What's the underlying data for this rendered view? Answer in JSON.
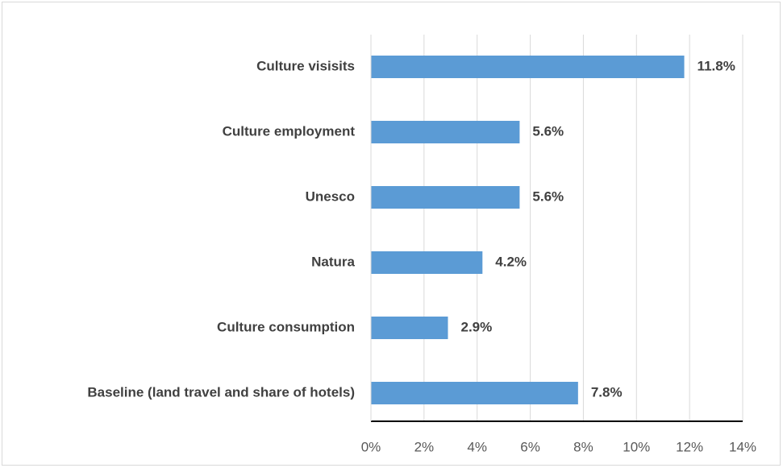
{
  "chart_data": {
    "type": "bar",
    "orientation": "horizontal",
    "categories": [
      "Culture visisits",
      "Culture employment",
      "Unesco",
      "Natura",
      "Culture consumption",
      "Baseline (land travel and share of hotels)"
    ],
    "values": [
      11.8,
      5.6,
      5.6,
      4.2,
      2.9,
      7.8
    ],
    "value_labels": [
      "11.8%",
      "5.6%",
      "5.6%",
      "4.2%",
      "2.9%",
      "7.8%"
    ],
    "xlim": [
      0,
      14
    ],
    "xticks": [
      0,
      2,
      4,
      6,
      8,
      10,
      12,
      14
    ],
    "xtick_labels": [
      "0%",
      "2%",
      "4%",
      "6%",
      "8%",
      "10%",
      "12%",
      "14%"
    ],
    "title": "",
    "xlabel": "",
    "ylabel": "",
    "grid": "vertical",
    "legend": "none",
    "colors": {
      "bar": "#5b9bd5",
      "grid": "#d9d9d9",
      "axis": "#000000",
      "text": "#404040"
    }
  }
}
